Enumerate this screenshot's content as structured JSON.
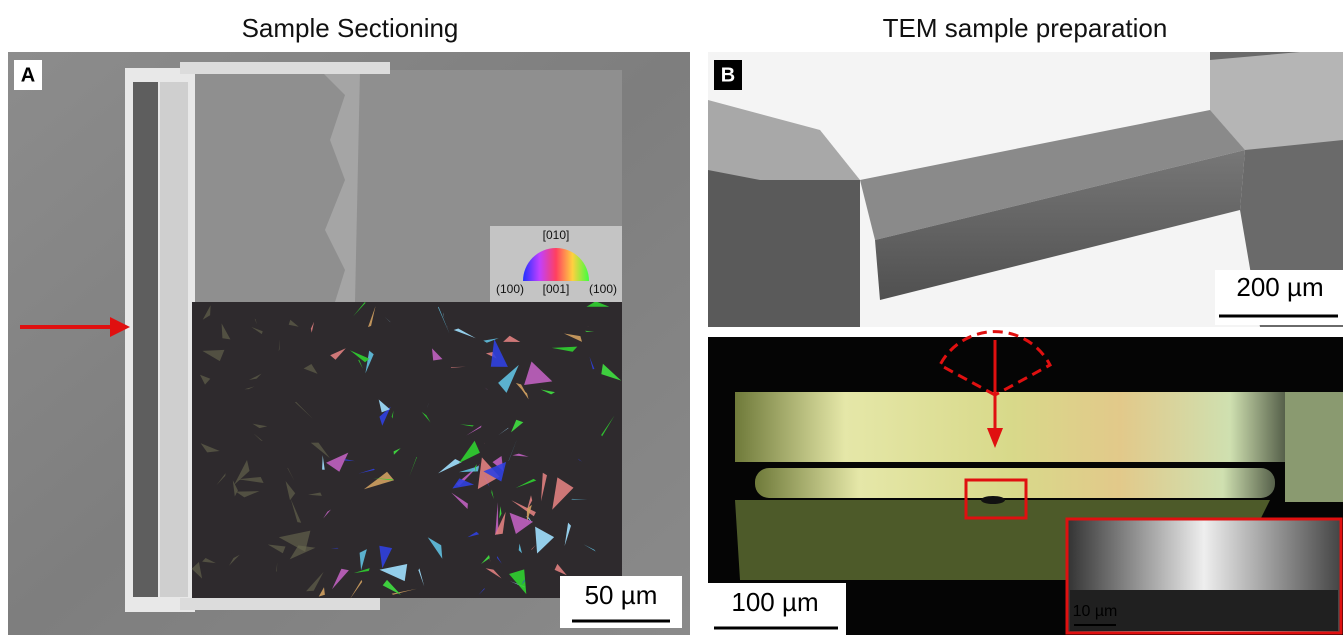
{
  "titles": {
    "left": "Sample Sectioning",
    "right": "TEM sample preparation"
  },
  "panel_a": {
    "label": "A",
    "color_key": {
      "top": "[010]",
      "left": "(100)",
      "center": "[001]",
      "right": "(100)"
    },
    "scale_bar": "50 µm"
  },
  "panel_b": {
    "label": "B",
    "top_scale_bar": "200 µm",
    "bottom_scale_bar": "100 µm",
    "inset_scale_bar": "10 µm"
  }
}
